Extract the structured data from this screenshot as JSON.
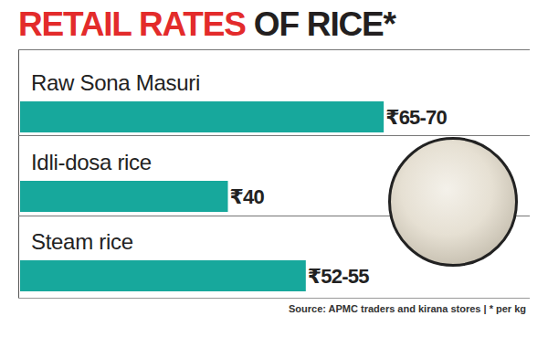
{
  "chart_data": {
    "type": "bar",
    "title": "RETAIL RATES OF RICE*",
    "title_highlight": "RETAIL RATES",
    "source": "Source: APMC traders and kirana stores | * per kg",
    "orientation": "horizontal",
    "categories": [
      "Raw Sona Masuri",
      "Idli-dosa rice",
      "Steam rice"
    ],
    "values": [
      70,
      40,
      55
    ],
    "value_labels": [
      "₹65-70",
      "₹40",
      "₹52-55"
    ],
    "color": "#17a89c",
    "xlim": [
      0,
      80
    ],
    "tick_labels": false,
    "grid": false,
    "data_labels": true
  }
}
